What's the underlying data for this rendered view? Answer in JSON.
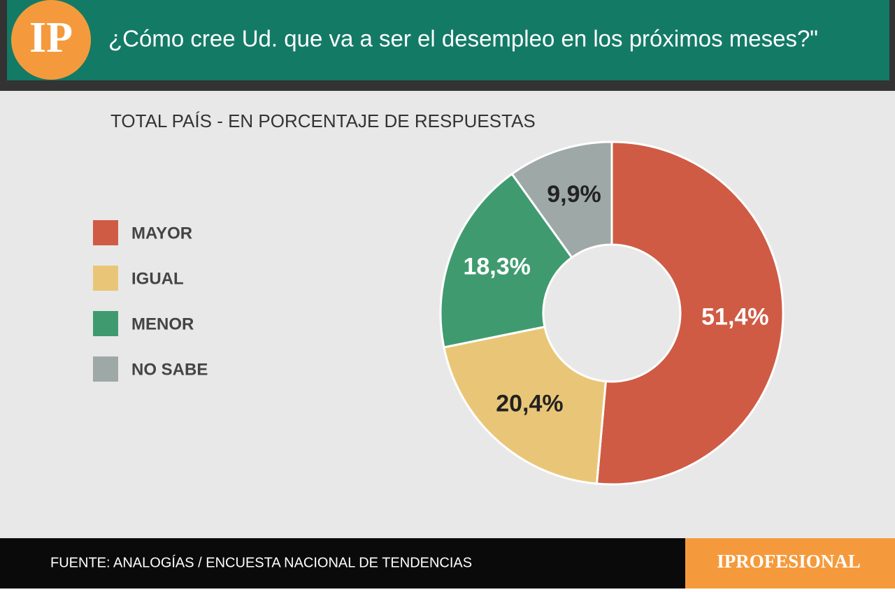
{
  "header": {
    "logo": "IP"
  },
  "chart_data": {
    "type": "donut",
    "title": "¿Cómo cree Ud. que va a ser el desempleo en los próximos meses?\"",
    "subtitle": "TOTAL PAÍS - EN PORCENTAJE DE RESPUESTAS",
    "categories": [
      "MAYOR",
      "IGUAL",
      "MENOR",
      "NO SABE"
    ],
    "values": [
      51.4,
      20.4,
      18.3,
      9.9
    ],
    "value_labels": [
      "51,4%",
      "20,4%",
      "18,3%",
      "9,9%"
    ],
    "colors": [
      "#cf5b45",
      "#e9c677",
      "#3f9b6f",
      "#9ea8a7"
    ],
    "label_colors": [
      "#ffffff",
      "#222222",
      "#ffffff",
      "#222222"
    ]
  },
  "footer": {
    "source": "FUENTE: ANALOGÍAS / ENCUESTA NACIONAL DE TENDENCIAS",
    "brand": "IPROFESIONAL"
  }
}
